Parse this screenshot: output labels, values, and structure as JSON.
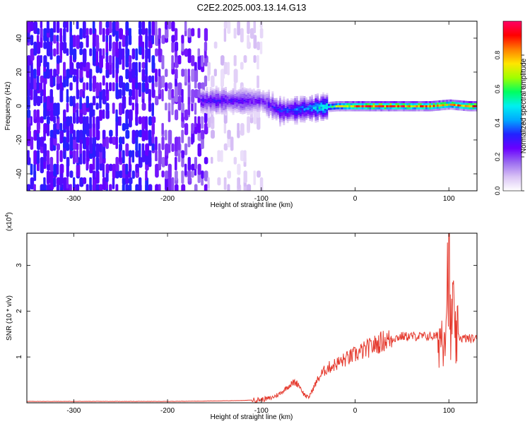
{
  "figure": {
    "title": "C2E2.2025.003.13.14.G13"
  },
  "colors": {
    "axis": "#000000",
    "snr_line": "#e53a2e",
    "spectrogram_base": "#7a2cf0"
  },
  "chart_data": [
    {
      "type": "heatmap",
      "name": "spectrogram",
      "xlabel": "Height of straight line (km)",
      "ylabel": "Frequency (Hz)",
      "xlim": [
        -350,
        130
      ],
      "ylim": [
        -50,
        50
      ],
      "x_ticks": [
        -300,
        -200,
        -100,
        0,
        100
      ],
      "y_ticks": [
        -40,
        -20,
        0,
        20,
        40
      ],
      "colorbar": {
        "label": "Normalized spectral amplitude",
        "range": [
          0,
          1
        ],
        "ticks": [
          0.0,
          0.2,
          0.4,
          0.6,
          0.8
        ],
        "tick_labels": [
          "0.0",
          "0.2",
          "0.4",
          "0.6",
          "0.8"
        ],
        "colormap": [
          "#ffffff",
          "#d9c2f5",
          "#9b6cf0",
          "#6a00ff",
          "#2222ff",
          "#00a8ff",
          "#00f0f0",
          "#00ff60",
          "#a0ff00",
          "#ffe600",
          "#ff7f00",
          "#ff0000",
          "#ff0066"
        ]
      },
      "ridge": [
        {
          "x": -160,
          "f": 3,
          "amp": 0.3
        },
        {
          "x": -140,
          "f": 3,
          "amp": 0.3
        },
        {
          "x": -120,
          "f": 3,
          "amp": 0.28
        },
        {
          "x": -100,
          "f": 3,
          "amp": 0.25
        },
        {
          "x": -80,
          "f": -3,
          "amp": 0.35
        },
        {
          "x": -60,
          "f": -2,
          "amp": 0.4
        },
        {
          "x": -40,
          "f": -1,
          "amp": 0.5
        },
        {
          "x": -20,
          "f": 0,
          "amp": 0.7
        },
        {
          "x": 0,
          "f": 0,
          "amp": 0.9
        },
        {
          "x": 20,
          "f": 0,
          "amp": 0.95
        },
        {
          "x": 40,
          "f": 0,
          "amp": 0.95
        },
        {
          "x": 60,
          "f": 0,
          "amp": 0.9
        },
        {
          "x": 80,
          "f": 0,
          "amp": 0.9
        },
        {
          "x": 100,
          "f": 1,
          "amp": 0.85
        },
        {
          "x": 120,
          "f": 0,
          "amp": 0.95
        }
      ]
    },
    {
      "type": "line",
      "name": "snr",
      "xlabel": "Height of straight line (km)",
      "ylabel": "SNR (10 * v/v)",
      "y_multiplier": "(x10",
      "y_exponent": "4",
      "y_multiplier_close": ")",
      "xlim": [
        -350,
        130
      ],
      "ylim": [
        0,
        3.7
      ],
      "x_ticks": [
        -300,
        -200,
        -100,
        0,
        100
      ],
      "y_ticks": [
        1,
        2,
        3
      ],
      "series": [
        {
          "x": [
            -350,
            -300,
            -250,
            -200,
            -150,
            -120,
            -100,
            -90,
            -80,
            -72,
            -65,
            -60,
            -55,
            -50,
            -45,
            -40,
            -35,
            -30,
            -20,
            -10,
            0,
            10,
            20,
            30,
            40,
            50,
            60,
            70,
            80,
            90,
            95,
            98,
            100,
            102,
            104,
            106,
            110,
            115,
            120,
            130
          ],
          "y": [
            0.03,
            0.03,
            0.03,
            0.03,
            0.04,
            0.05,
            0.07,
            0.1,
            0.2,
            0.35,
            0.45,
            0.4,
            0.2,
            0.1,
            0.3,
            0.5,
            0.65,
            0.75,
            0.85,
            0.95,
            1.05,
            1.15,
            1.25,
            1.35,
            1.4,
            1.45,
            1.45,
            1.45,
            1.45,
            1.45,
            1.6,
            2.4,
            3.6,
            1.0,
            2.6,
            1.3,
            1.45,
            1.4,
            1.4,
            1.4
          ]
        }
      ]
    }
  ]
}
